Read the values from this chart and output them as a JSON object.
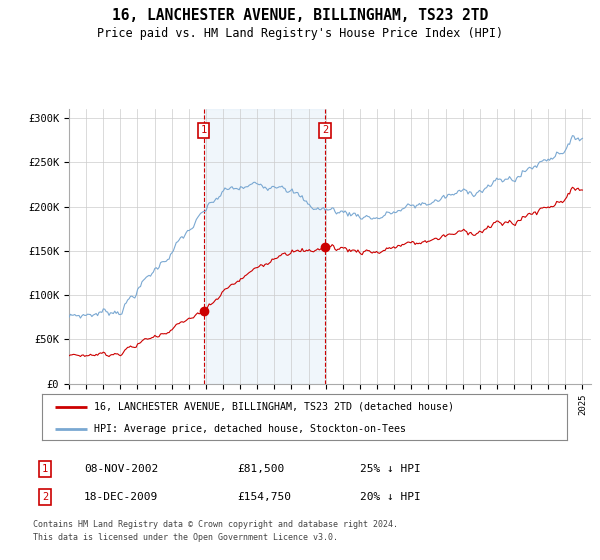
{
  "title": "16, LANCHESTER AVENUE, BILLINGHAM, TS23 2TD",
  "subtitle": "Price paid vs. HM Land Registry's House Price Index (HPI)",
  "y_min": 0,
  "y_max": 310000,
  "yticks": [
    0,
    50000,
    100000,
    150000,
    200000,
    250000,
    300000
  ],
  "ytick_labels": [
    "£0",
    "£50K",
    "£100K",
    "£150K",
    "£200K",
    "£250K",
    "£300K"
  ],
  "sale1_date": 2002.86,
  "sale1_price": 81500,
  "sale2_date": 2009.96,
  "sale2_price": 154750,
  "hpi_line_color": "#7aa8d2",
  "price_line_color": "#cc0000",
  "sale_dot_color": "#cc0000",
  "vline_color": "#cc0000",
  "shade_color": "#daeaf7",
  "legend1_label": "16, LANCHESTER AVENUE, BILLINGHAM, TS23 2TD (detached house)",
  "legend2_label": "HPI: Average price, detached house, Stockton-on-Tees",
  "table_row1": [
    "1",
    "08-NOV-2002",
    "£81,500",
    "25% ↓ HPI"
  ],
  "table_row2": [
    "2",
    "18-DEC-2009",
    "£154,750",
    "20% ↓ HPI"
  ],
  "footnote1": "Contains HM Land Registry data © Crown copyright and database right 2024.",
  "footnote2": "This data is licensed under the Open Government Licence v3.0.",
  "background_color": "#ffffff"
}
